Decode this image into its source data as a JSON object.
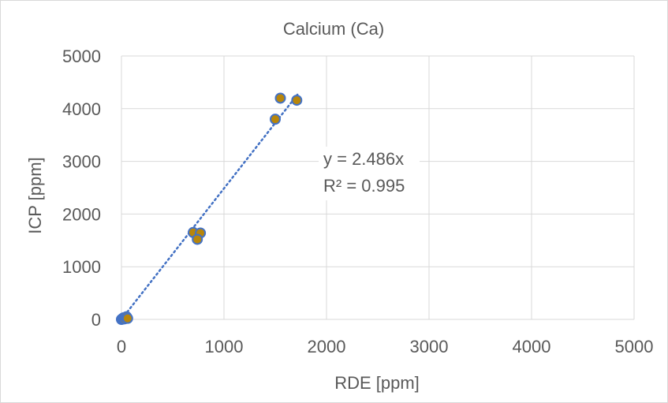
{
  "chart_data": {
    "type": "scatter",
    "title": "Calcium (Ca)",
    "xlabel": "RDE [ppm]",
    "ylabel": "ICP [ppm]",
    "xlim": [
      0,
      5000
    ],
    "ylim": [
      0,
      5000
    ],
    "xticks": [
      "0",
      "1000",
      "2000",
      "3000",
      "4000",
      "5000"
    ],
    "yticks": [
      "0",
      "1000",
      "2000",
      "3000",
      "4000",
      "5000"
    ],
    "grid": true,
    "legend": "none",
    "points": [
      {
        "x": 0,
        "y": 0
      },
      {
        "x": 10,
        "y": 15
      },
      {
        "x": 20,
        "y": 30
      },
      {
        "x": 30,
        "y": 10
      },
      {
        "x": 40,
        "y": 40
      },
      {
        "x": 50,
        "y": 50
      },
      {
        "x": 60,
        "y": 20
      },
      {
        "x": 700,
        "y": 1650
      },
      {
        "x": 770,
        "y": 1640
      },
      {
        "x": 740,
        "y": 1520
      },
      {
        "x": 1500,
        "y": 3800
      },
      {
        "x": 1550,
        "y": 4200
      },
      {
        "x": 1710,
        "y": 4160
      }
    ],
    "trendline": {
      "slope": 2.486,
      "x_range": [
        0,
        1720
      ],
      "style": "dotted"
    },
    "annotation": {
      "equation": "y = 2.486x",
      "r_squared": "R² = 0.995"
    },
    "colors": {
      "marker_fill": "#B8860B",
      "marker_edge": "#4472C4",
      "trendline": "#4472C4",
      "grid": "#d9d9d9",
      "text": "#595959"
    }
  }
}
